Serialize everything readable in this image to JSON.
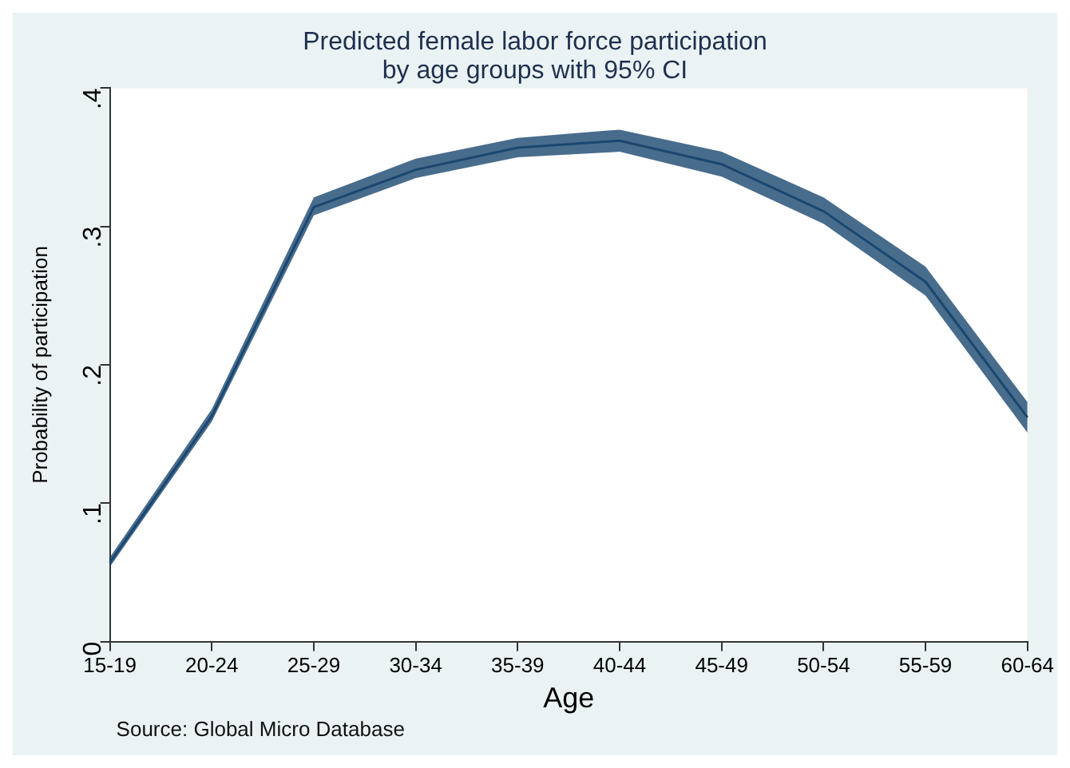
{
  "chart_data": {
    "type": "line",
    "title": "Predicted female labor force participation\nby age groups with 95% CI",
    "xlabel": "Age",
    "ylabel": "Probability of participation",
    "annotations": [
      "Source: Global Micro Database"
    ],
    "categories": [
      "15-19",
      "20-24",
      "25-29",
      "30-34",
      "35-39",
      "40-44",
      "45-49",
      "50-54",
      "55-59",
      "60-64"
    ],
    "series": [
      {
        "color": "#1a476f",
        "values": [
          0.057,
          0.163,
          0.314,
          0.341,
          0.357,
          0.362,
          0.345,
          0.311,
          0.26,
          0.162
        ],
        "lower": [
          0.054,
          0.159,
          0.308,
          0.335,
          0.35,
          0.354,
          0.336,
          0.302,
          0.25,
          0.151
        ],
        "upper": [
          0.061,
          0.168,
          0.321,
          0.349,
          0.364,
          0.37,
          0.354,
          0.321,
          0.271,
          0.173
        ]
      }
    ],
    "ylim": [
      0,
      0.4
    ],
    "yticks": [
      0,
      {
        "value": 0.1,
        "label": ".1"
      },
      {
        "value": 0.2,
        "label": ".2"
      },
      {
        "value": 0.3,
        "label": ".3"
      },
      {
        "value": 0.4,
        "label": ".4"
      }
    ],
    "grid": false,
    "legend": false,
    "marker": "none",
    "line_style": "solid"
  }
}
